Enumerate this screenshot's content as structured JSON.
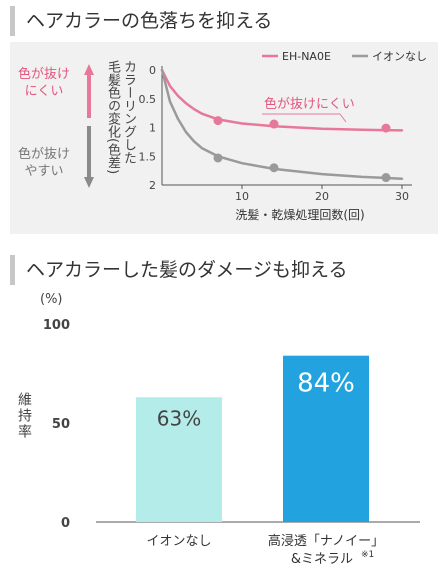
{
  "section1": {
    "title": "ヘアカラーの色落ちを抑える"
  },
  "section2": {
    "title": "ヘアカラーした髪のダメージも抑える"
  },
  "colors": {
    "pink": "#e8789a",
    "pink_text": "#e2577f",
    "gray": "#9a9a9a",
    "light_blue": "#b4ecea",
    "blue": "#22a3e0"
  },
  "chart_data": [
    {
      "type": "line",
      "xlabel": "洗髪・乾燥処理回数(回)",
      "ylabel": [
        "カラーリングした",
        "毛髪色の変化(色差)"
      ],
      "side_label_top": "色が抜けにくい",
      "side_label_bottom": "色が抜けやすい",
      "xlim": [
        0,
        30
      ],
      "ylim": [
        0,
        2
      ],
      "y_inverted": true,
      "x_ticks": [
        "10",
        "20",
        "30"
      ],
      "y_ticks": [
        "0",
        "0.5",
        "1",
        "1.5",
        "2"
      ],
      "annotation": "色が抜けにくい",
      "series": [
        {
          "name": "EH-NA0E",
          "color": "#e8789a",
          "curve": [
            [
              0,
              0
            ],
            [
              1,
              0.28
            ],
            [
              2,
              0.45
            ],
            [
              3,
              0.58
            ],
            [
              4,
              0.68
            ],
            [
              5,
              0.76
            ],
            [
              7,
              0.86
            ],
            [
              10,
              0.93
            ],
            [
              14,
              0.98
            ],
            [
              20,
              1.02
            ],
            [
              25,
              1.04
            ],
            [
              30,
              1.05
            ]
          ],
          "markers": [
            [
              7,
              0.88
            ],
            [
              14,
              0.94
            ],
            [
              28,
              1.01
            ]
          ]
        },
        {
          "name": "イオンなし",
          "color": "#9a9a9a",
          "curve": [
            [
              0,
              0
            ],
            [
              1,
              0.55
            ],
            [
              2,
              0.85
            ],
            [
              3,
              1.08
            ],
            [
              4,
              1.24
            ],
            [
              5,
              1.36
            ],
            [
              7,
              1.5
            ],
            [
              10,
              1.62
            ],
            [
              14,
              1.72
            ],
            [
              20,
              1.81
            ],
            [
              25,
              1.86
            ],
            [
              30,
              1.89
            ]
          ],
          "markers": [
            [
              7,
              1.53
            ],
            [
              14,
              1.7
            ],
            [
              28,
              1.87
            ]
          ]
        }
      ]
    },
    {
      "type": "bar",
      "unit": "(%)",
      "ylabel": "維持率",
      "ylim": [
        0,
        100
      ],
      "y_ticks": [
        "0",
        "50",
        "100"
      ],
      "categories": [
        "イオンなし",
        "高浸透「ナノイー」"
      ],
      "category_second_line": [
        "",
        "&ミネラル"
      ],
      "footnote_mark": "※1",
      "values": [
        63,
        84
      ],
      "value_labels": [
        "63%",
        "84%"
      ],
      "bar_colors": [
        "#b4ecea",
        "#22a3e0"
      ]
    }
  ]
}
